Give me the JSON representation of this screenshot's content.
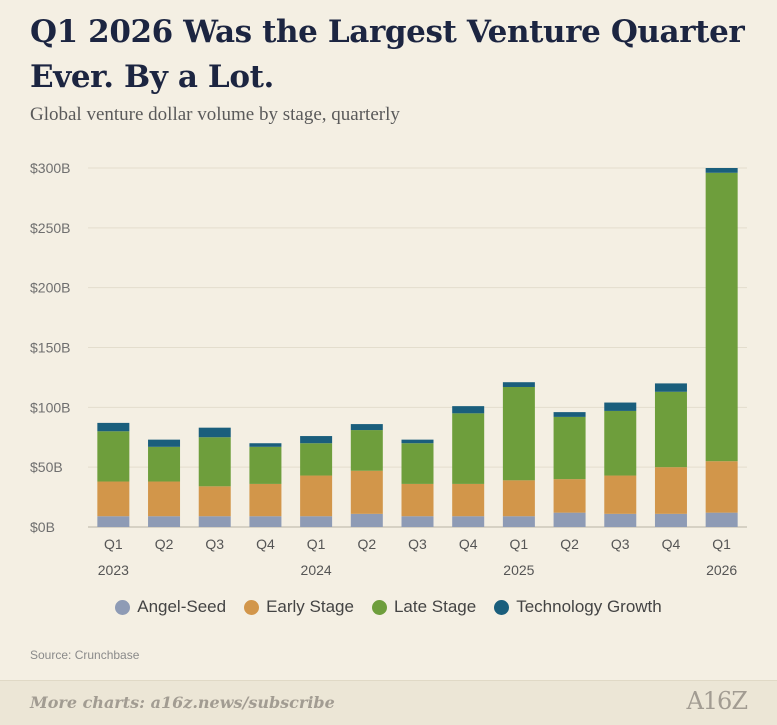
{
  "header": {
    "title": "Q1 2026 Was the Largest Venture Quarter Ever. By a Lot.",
    "subtitle": "Global venture dollar volume by stage, quarterly"
  },
  "chart_data": {
    "type": "bar",
    "stacked": true,
    "categories": [
      "Q1",
      "Q2",
      "Q3",
      "Q4",
      "Q1",
      "Q2",
      "Q3",
      "Q4",
      "Q1",
      "Q2",
      "Q3",
      "Q4",
      "Q1"
    ],
    "years": [
      {
        "label": "2023",
        "index": 0
      },
      {
        "label": "2024",
        "index": 4
      },
      {
        "label": "2025",
        "index": 8
      },
      {
        "label": "2026",
        "index": 12
      }
    ],
    "series": [
      {
        "name": "Angel-Seed",
        "color": "#8e9bb5",
        "values": [
          9,
          9,
          9,
          9,
          9,
          11,
          9,
          9,
          9,
          12,
          11,
          11,
          12
        ]
      },
      {
        "name": "Early Stage",
        "color": "#d2964a",
        "values": [
          29,
          29,
          25,
          27,
          34,
          36,
          27,
          27,
          30,
          28,
          32,
          39,
          43
        ]
      },
      {
        "name": "Late Stage",
        "color": "#6e9e3c",
        "values": [
          42,
          29,
          41,
          31,
          27,
          34,
          34,
          59,
          78,
          52,
          54,
          63,
          241
        ]
      },
      {
        "name": "Technology Growth",
        "color": "#1a5e7c",
        "values": [
          7,
          6,
          8,
          3,
          6,
          5,
          3,
          6,
          4,
          4,
          7,
          7,
          4
        ]
      }
    ],
    "ylim": [
      0,
      300
    ],
    "yticks": [
      0,
      50,
      100,
      150,
      200,
      250,
      300
    ],
    "ytick_labels": [
      "$0B",
      "$50B",
      "$100B",
      "$150B",
      "$200B",
      "$250B",
      "$300B"
    ],
    "grid": true,
    "legend_position": "bottom"
  },
  "legend": {
    "items": [
      {
        "label": "Angel-Seed",
        "color": "#8e9bb5"
      },
      {
        "label": "Early Stage",
        "color": "#d2964a"
      },
      {
        "label": "Late Stage",
        "color": "#6e9e3c"
      },
      {
        "label": "Technology Growth",
        "color": "#1a5e7c"
      }
    ]
  },
  "source": "Source: Crunchbase",
  "footer": {
    "link_text": "More charts: a16z.news/subscribe",
    "logo_text": "A16Z"
  }
}
